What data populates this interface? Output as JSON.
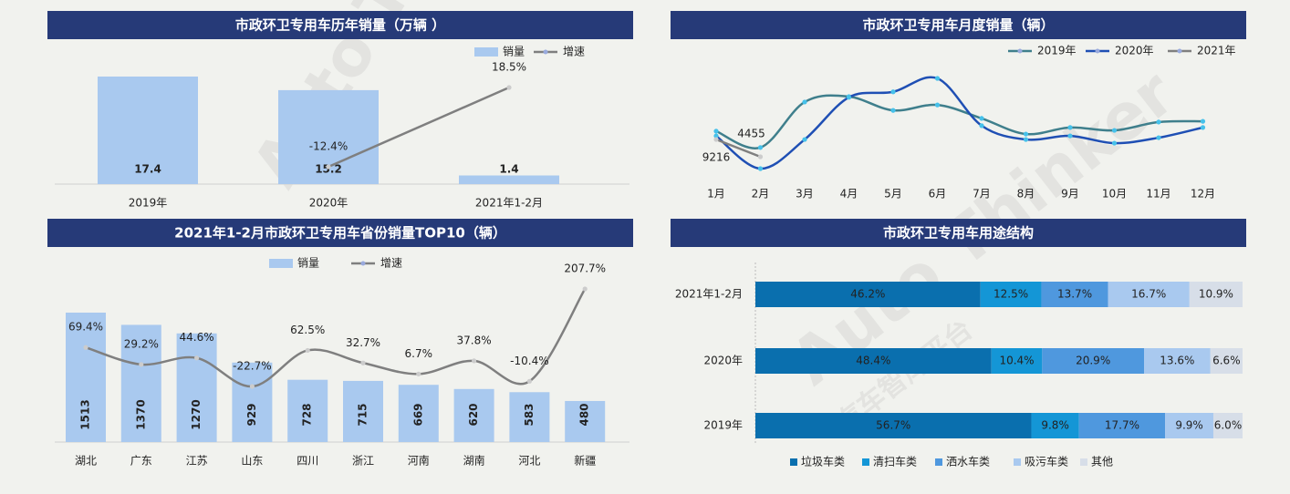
{
  "watermark": [
    "Auto Thinker",
    "汽车智库平台"
  ],
  "chart_data": [
    {
      "type": "bar",
      "title": "市政环卫专用车历年销量（万辆 ）",
      "categories": [
        "2019年",
        "2020年",
        "2021年1-2月"
      ],
      "series": [
        {
          "name": "销量",
          "type": "bar",
          "color": "#a9c9ef",
          "values": [
            17.4,
            15.2,
            1.4
          ]
        },
        {
          "name": "增速",
          "type": "line",
          "axis": "y2",
          "color": "#7f7f7f",
          "values": [
            null,
            -12.4,
            18.5
          ],
          "value_labels": [
            null,
            "-12.4%",
            "18.5%"
          ]
        }
      ]
    },
    {
      "type": "line",
      "title": "市政环卫专用车月度销量（辆）",
      "categories": [
        "1月",
        "2月",
        "3月",
        "4月",
        "5月",
        "6月",
        "7月",
        "8月",
        "9月",
        "10月",
        "11月",
        "12月"
      ],
      "series": [
        {
          "name": "2019年",
          "color": "#3f7f8c",
          "values": [
            11500,
            7000,
            19500,
            21000,
            17200,
            18700,
            15000,
            10700,
            12500,
            11700,
            14000,
            14200
          ]
        },
        {
          "name": "2020年",
          "color": "#1f4fb4",
          "values": [
            10200,
            1200,
            9200,
            20800,
            22300,
            26000,
            13000,
            9200,
            10200,
            8200,
            9700,
            12500
          ]
        },
        {
          "name": "2021年",
          "color": "#7f7f7f",
          "values": [
            9216,
            4455,
            null,
            null,
            null,
            null,
            null,
            null,
            null,
            null,
            null,
            null
          ],
          "show_labels": true
        }
      ]
    },
    {
      "type": "bar",
      "title": "2021年1-2月市政环卫专用车省份销量TOP10（辆）",
      "categories": [
        "湖北",
        "广东",
        "江苏",
        "山东",
        "四川",
        "浙江",
        "河南",
        "湖南",
        "河北",
        "新疆"
      ],
      "series": [
        {
          "name": "销量",
          "type": "bar",
          "color": "#a9c9ef",
          "values": [
            1513,
            1370,
            1270,
            929,
            728,
            715,
            669,
            620,
            583,
            480
          ]
        },
        {
          "name": "增速",
          "type": "line",
          "axis": "y2",
          "color": "#7f7f7f",
          "values": [
            69.4,
            29.2,
            44.6,
            -22.7,
            62.5,
            32.7,
            6.7,
            37.8,
            -10.4,
            207.7
          ],
          "value_labels": [
            "69.4%",
            "29.2%",
            "44.6%",
            "-22.7%",
            "62.5%",
            "32.7%",
            "6.7%",
            "37.8%",
            "-10.4%",
            "207.7%"
          ]
        }
      ]
    },
    {
      "type": "stacked_barh",
      "title": "市政环卫专用车用途结构",
      "categories": [
        "2021年1-2月",
        "2020年",
        "2019年"
      ],
      "series": [
        {
          "name": "垃圾车类",
          "color": "#0a6fae",
          "values": [
            46.2,
            48.4,
            56.7
          ],
          "value_labels": [
            "46.2%",
            "48.4%",
            "56.7%"
          ]
        },
        {
          "name": "清扫车类",
          "color": "#1496d6",
          "values": [
            12.5,
            10.4,
            9.8
          ],
          "value_labels": [
            "12.5%",
            "10.4%",
            "9.8%"
          ]
        },
        {
          "name": "洒水车类",
          "color": "#4f98de",
          "values": [
            13.7,
            20.9,
            17.7
          ],
          "value_labels": [
            "13.7%",
            "20.9%",
            "17.7%"
          ]
        },
        {
          "name": "吸污车类",
          "color": "#a9c9ef",
          "values": [
            16.7,
            13.6,
            9.9
          ],
          "value_labels": [
            "16.7%",
            "13.6%",
            "9.9%"
          ]
        },
        {
          "name": "其他",
          "color": "#d7dee8",
          "values": [
            10.9,
            6.6,
            6.0
          ],
          "value_labels": [
            "10.9%",
            "6.6%",
            "6.0%"
          ]
        }
      ]
    }
  ]
}
